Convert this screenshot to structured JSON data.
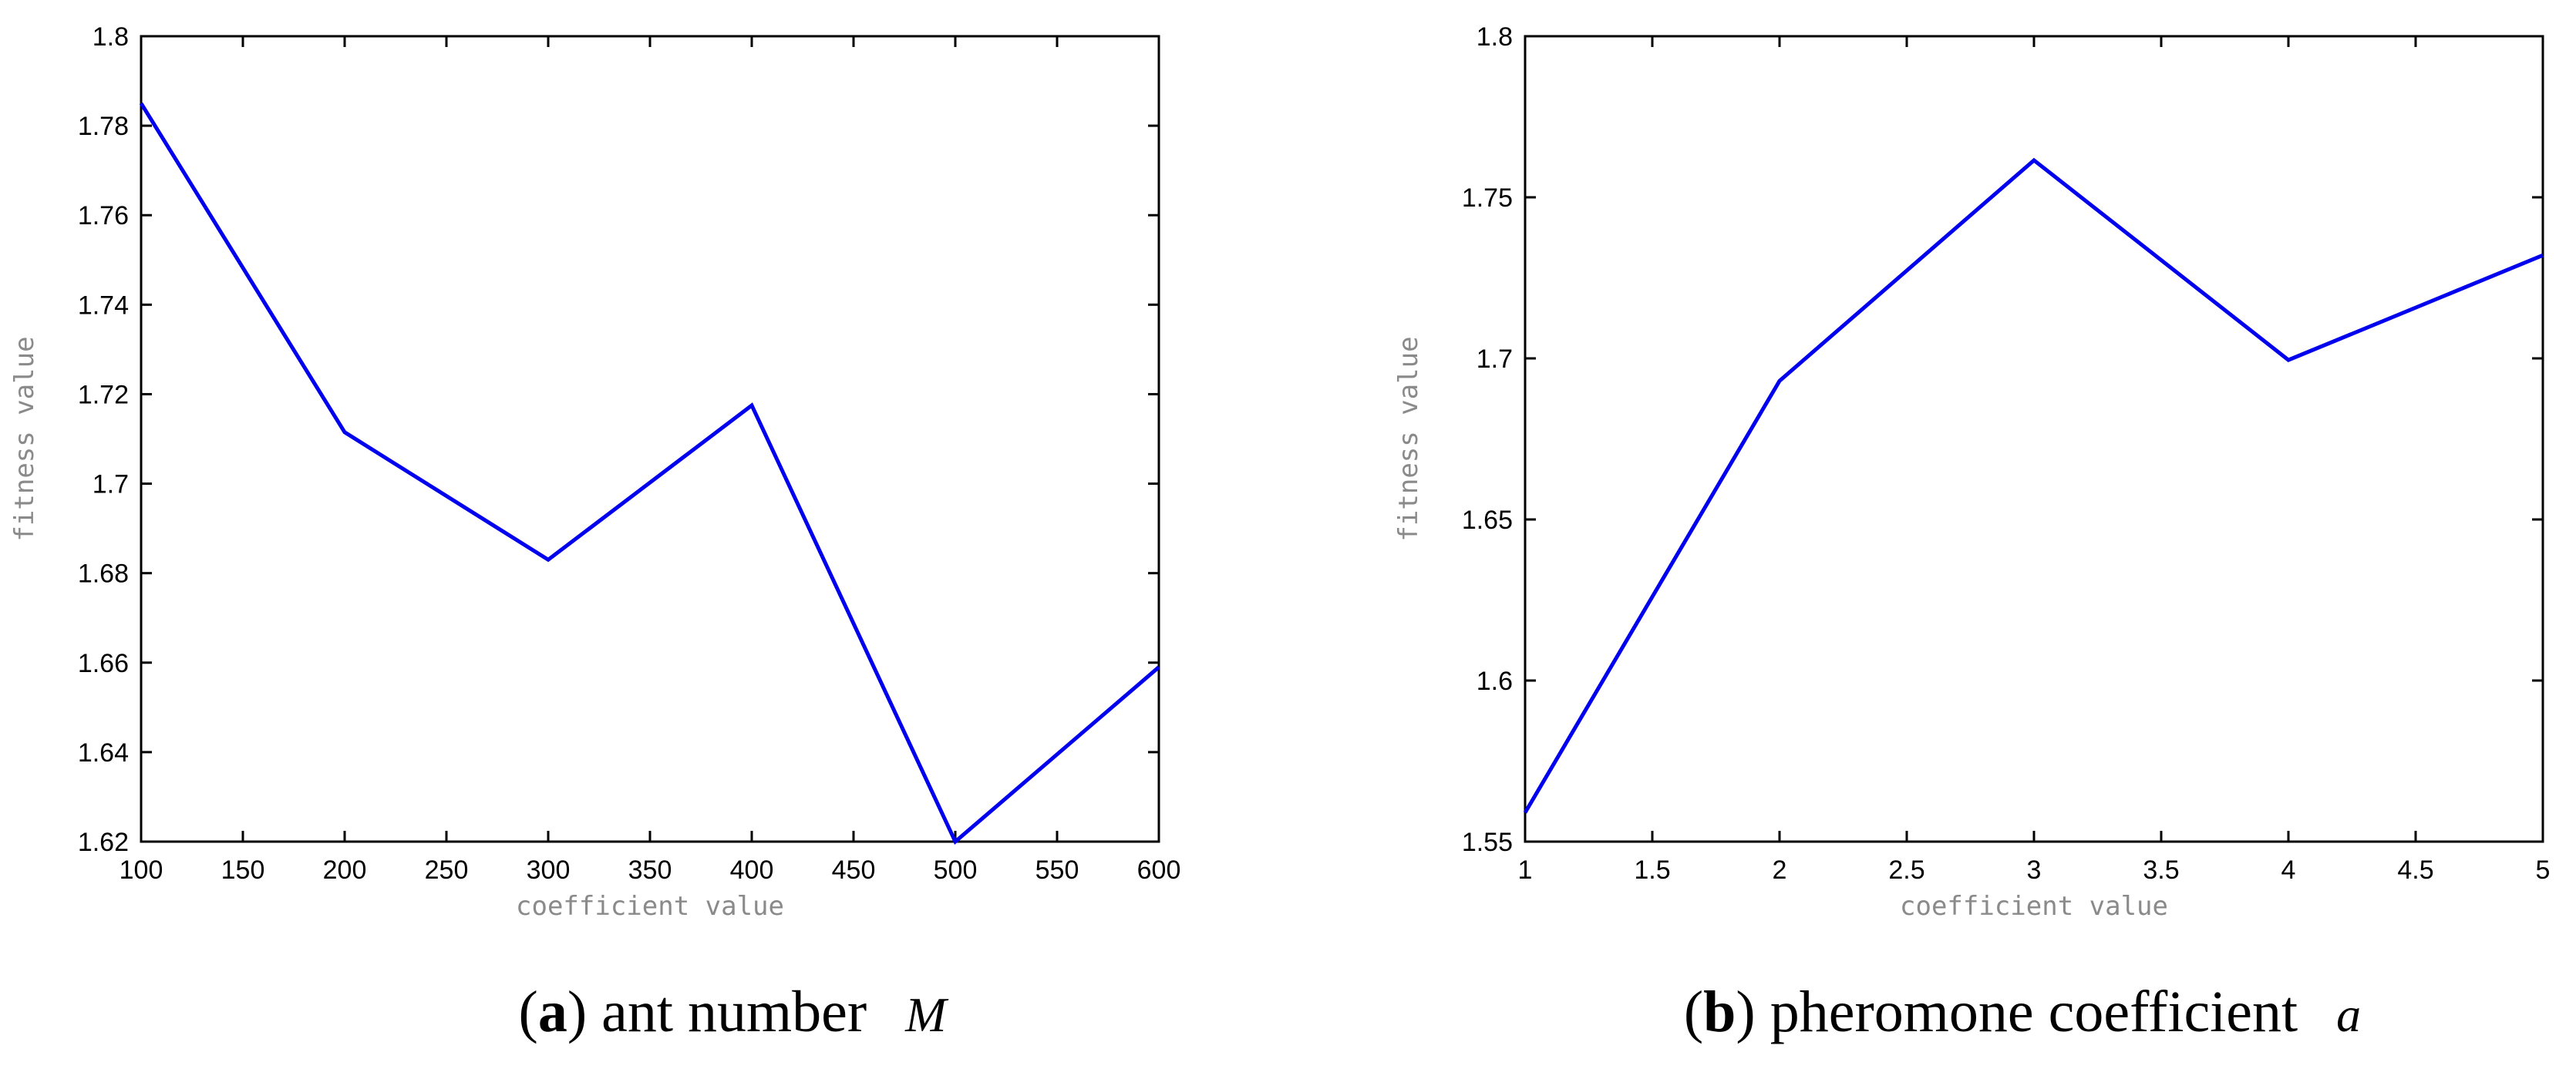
{
  "chart_data": [
    {
      "type": "line",
      "xlabel": "coefficient value",
      "ylabel": "fitness value",
      "xlim": [
        100,
        600
      ],
      "ylim": [
        1.62,
        1.8
      ],
      "xticks": [
        "100",
        "150",
        "200",
        "250",
        "300",
        "350",
        "400",
        "450",
        "500",
        "550",
        "600"
      ],
      "yticks": [
        "1.62",
        "1.64",
        "1.66",
        "1.68",
        "1.7",
        "1.72",
        "1.74",
        "1.76",
        "1.78",
        "1.8"
      ],
      "series": [
        {
          "name": "fitness",
          "color": "#0000ee",
          "x": [
            100,
            200,
            300,
            400,
            500,
            600
          ],
          "y": [
            1.785,
            1.7115,
            1.683,
            1.7175,
            1.62,
            1.659
          ]
        }
      ],
      "caption": {
        "label": "a",
        "text": "ant number",
        "var": "M"
      }
    },
    {
      "type": "line",
      "xlabel": "coefficient value",
      "ylabel": "fitness value",
      "xlim": [
        1,
        5
      ],
      "ylim": [
        1.55,
        1.8
      ],
      "xticks": [
        "1",
        "1.5",
        "2",
        "2.5",
        "3",
        "3.5",
        "4",
        "4.5",
        "5"
      ],
      "yticks": [
        "1.55",
        "1.6",
        "1.65",
        "1.7",
        "1.75",
        "1.8"
      ],
      "series": [
        {
          "name": "fitness",
          "color": "#0000ee",
          "x": [
            1,
            2,
            3,
            4,
            5
          ],
          "y": [
            1.559,
            1.693,
            1.7615,
            1.6995,
            1.732
          ]
        }
      ],
      "caption": {
        "label": "b",
        "text": "pheromone coefficient",
        "var": "a"
      }
    }
  ]
}
